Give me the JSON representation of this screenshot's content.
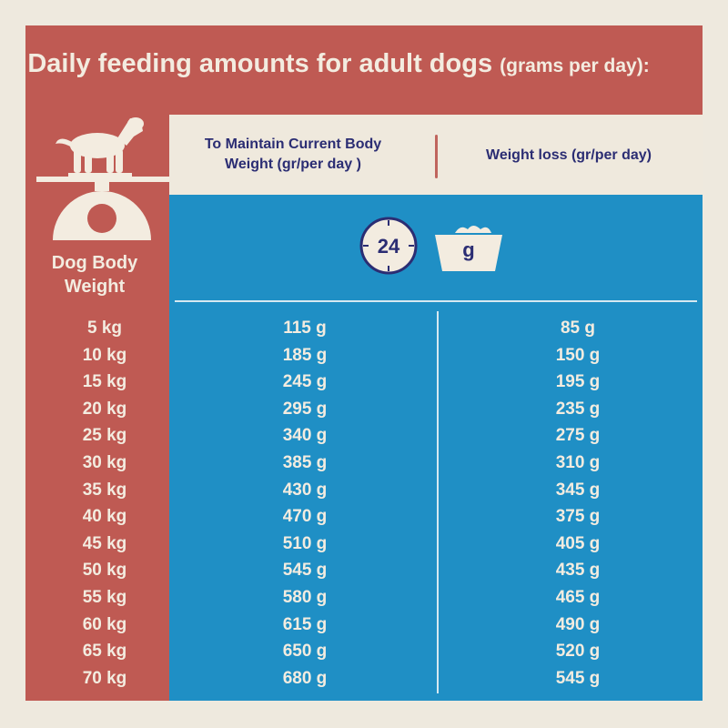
{
  "title": {
    "main": "Daily feeding amounts for adult dogs",
    "suffix": "(grams per day):"
  },
  "columns": {
    "weight_label": "Dog Body Weight",
    "maintain": "To Maintain Current Body Weight (gr/per day )",
    "loss": "Weight loss (gr/per day)"
  },
  "icons": {
    "clock_number": "24",
    "bowl_unit": "g",
    "dog": "dog-icon",
    "scale": "scale-icon",
    "clock": "clock-icon",
    "bowl": "bowl-icon"
  },
  "colors": {
    "frame": "#bf5a53",
    "panel": "#1f8fc5",
    "header": "#efe9dd",
    "text_dark": "#2b2d73",
    "text_light": "#f3ece0"
  },
  "rows": [
    {
      "weight": "5 kg",
      "maintain": "115 g",
      "loss": "85 g"
    },
    {
      "weight": "10 kg",
      "maintain": "185 g",
      "loss": "150 g"
    },
    {
      "weight": "15 kg",
      "maintain": "245 g",
      "loss": "195 g"
    },
    {
      "weight": "20 kg",
      "maintain": "295 g",
      "loss": "235 g"
    },
    {
      "weight": "25 kg",
      "maintain": "340 g",
      "loss": "275 g"
    },
    {
      "weight": "30 kg",
      "maintain": "385 g",
      "loss": "310 g"
    },
    {
      "weight": "35 kg",
      "maintain": "430 g",
      "loss": "345 g"
    },
    {
      "weight": "40 kg",
      "maintain": "470 g",
      "loss": "375 g"
    },
    {
      "weight": "45 kg",
      "maintain": "510 g",
      "loss": "405 g"
    },
    {
      "weight": "50 kg",
      "maintain": "545 g",
      "loss": "435 g"
    },
    {
      "weight": "55 kg",
      "maintain": "580 g",
      "loss": "465 g"
    },
    {
      "weight": "60 kg",
      "maintain": "615 g",
      "loss": "490 g"
    },
    {
      "weight": "65 kg",
      "maintain": "650 g",
      "loss": "520 g"
    },
    {
      "weight": "70 kg",
      "maintain": "680 g",
      "loss": "545 g"
    }
  ]
}
